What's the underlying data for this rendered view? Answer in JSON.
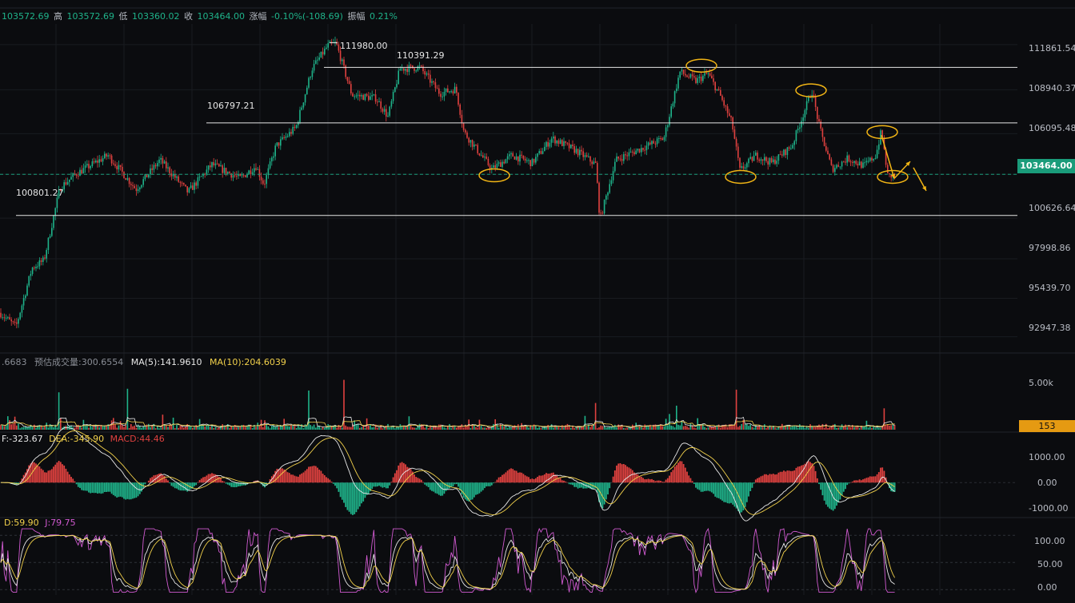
{
  "header": {
    "open_value": "103572.69",
    "high_label": "高",
    "high_value": "103572.69",
    "low_label": "低",
    "low_value": "103360.02",
    "close_label": "收",
    "close_value": "103464.00",
    "change_label": "涨幅",
    "change_value": "-0.10%(-108.69)",
    "amplitude_label": "振幅",
    "amplitude_value": "0.21%"
  },
  "price_tag": "103464.00",
  "volume_tag": "153",
  "colors": {
    "up": "#1fb38a",
    "down": "#e0413f",
    "ma5": "#e8e8e8",
    "ma10": "#f2d14b",
    "annotation": "#f2b515",
    "level": "#e6e6e6"
  },
  "chart_data": [
    {
      "type": "candlestick",
      "name": "price",
      "ylim": [
        92000,
        113200
      ],
      "y_ticks": [
        "111861.54",
        "108940.37",
        "106095.48",
        "103464.00",
        "100626.64",
        "97998.86",
        "95439.70",
        "92947.38"
      ],
      "y_tick_values": [
        111861.54,
        108940.37,
        106095.48,
        103464.0,
        100626.64,
        97998.86,
        95439.7,
        92947.38
      ],
      "levels": [
        {
          "label": "111980.00",
          "value": 111980.0
        },
        {
          "label": "110391.29",
          "value": 110391.29
        },
        {
          "label": "106797.21",
          "value": 106797.21
        },
        {
          "label": "100801.27",
          "value": 100801.27
        }
      ],
      "horizontal_lines": [
        110391.29,
        106797.21,
        100801.27
      ],
      "current_price": 103464.0,
      "path_points": [
        [
          0,
          94500
        ],
        [
          20,
          93600
        ],
        [
          40,
          97400
        ],
        [
          55,
          97900
        ],
        [
          75,
          102600
        ],
        [
          95,
          103500
        ],
        [
          135,
          104700
        ],
        [
          170,
          102500
        ],
        [
          200,
          104400
        ],
        [
          235,
          102300
        ],
        [
          265,
          104100
        ],
        [
          300,
          103200
        ],
        [
          320,
          104000
        ],
        [
          330,
          102800
        ],
        [
          345,
          105300
        ],
        [
          370,
          106500
        ],
        [
          390,
          110300
        ],
        [
          410,
          111800
        ],
        [
          420,
          111980
        ],
        [
          440,
          108600
        ],
        [
          470,
          108400
        ],
        [
          485,
          107200
        ],
        [
          500,
          110300
        ],
        [
          525,
          110391
        ],
        [
          550,
          108700
        ],
        [
          570,
          109000
        ],
        [
          580,
          106200
        ],
        [
          600,
          104800
        ],
        [
          615,
          103800
        ],
        [
          640,
          104700
        ],
        [
          665,
          104200
        ],
        [
          690,
          105800
        ],
        [
          720,
          105000
        ],
        [
          745,
          104100
        ],
        [
          750,
          100500
        ],
        [
          770,
          104400
        ],
        [
          800,
          105100
        ],
        [
          830,
          105800
        ],
        [
          850,
          110100
        ],
        [
          870,
          109500
        ],
        [
          885,
          110000
        ],
        [
          900,
          108600
        ],
        [
          915,
          106800
        ],
        [
          925,
          103700
        ],
        [
          945,
          104700
        ],
        [
          965,
          104200
        ],
        [
          990,
          105300
        ],
        [
          1015,
          108900
        ],
        [
          1025,
          106400
        ],
        [
          1040,
          103800
        ],
        [
          1060,
          104500
        ],
        [
          1080,
          104000
        ],
        [
          1095,
          104700
        ],
        [
          1102,
          106300
        ],
        [
          1110,
          103300
        ],
        [
          1120,
          103464
        ]
      ],
      "annotations": [
        {
          "type": "ellipse",
          "at_x": 618,
          "at_value": 103400
        },
        {
          "type": "ellipse",
          "at_x": 877,
          "at_value": 110500
        },
        {
          "type": "ellipse",
          "at_x": 926,
          "at_value": 103300
        },
        {
          "type": "ellipse",
          "at_x": 1014,
          "at_value": 108900
        },
        {
          "type": "ellipse",
          "at_x": 1103,
          "at_value": 106200
        },
        {
          "type": "ellipse",
          "at_x": 1116,
          "at_value": 103300
        }
      ],
      "arrows": [
        {
          "from": [
            1102,
            106000
          ],
          "to": [
            1118,
            103200
          ]
        },
        {
          "from": [
            1118,
            103200
          ],
          "to": [
            1138,
            104300
          ]
        },
        {
          "from": [
            1142,
            103900
          ],
          "to": [
            1158,
            102400
          ]
        }
      ]
    },
    {
      "type": "bar",
      "name": "volume",
      "legend": [
        {
          "label": "",
          "value": ".6683"
        },
        {
          "label": "预估成交量",
          "value": ":300.6554"
        },
        {
          "label": "MA(5)",
          "value": ":141.9610"
        },
        {
          "label": "MA(10)",
          "value": ":204.6039"
        }
      ],
      "y_ticks": [
        "5.00k"
      ],
      "ylim": [
        0,
        7000
      ],
      "spikes": [
        [
          73,
          4200
        ],
        [
          160,
          4600
        ],
        [
          385,
          4400
        ],
        [
          430,
          5600
        ],
        [
          745,
          3000
        ],
        [
          845,
          2700
        ],
        [
          920,
          4500
        ],
        [
          1105,
          2400
        ]
      ]
    },
    {
      "type": "line",
      "name": "macd",
      "legend": [
        {
          "label": "",
          "value": "F:-323.67"
        },
        {
          "label": "DEA",
          "value": ":-345.90"
        },
        {
          "label": "MACD",
          "value": ":44.46"
        }
      ],
      "y_ticks": [
        "1000.00",
        "0.00",
        "-1000.00"
      ],
      "ylim": [
        -1100,
        1300
      ]
    },
    {
      "type": "line",
      "name": "kdj",
      "legend": [
        {
          "label": "D",
          "value": ":59.90"
        },
        {
          "label": "J",
          "value": ":79.75"
        }
      ],
      "y_ticks": [
        "100.00",
        "50.00",
        "0.00"
      ],
      "ylim": [
        -10,
        115
      ]
    }
  ]
}
